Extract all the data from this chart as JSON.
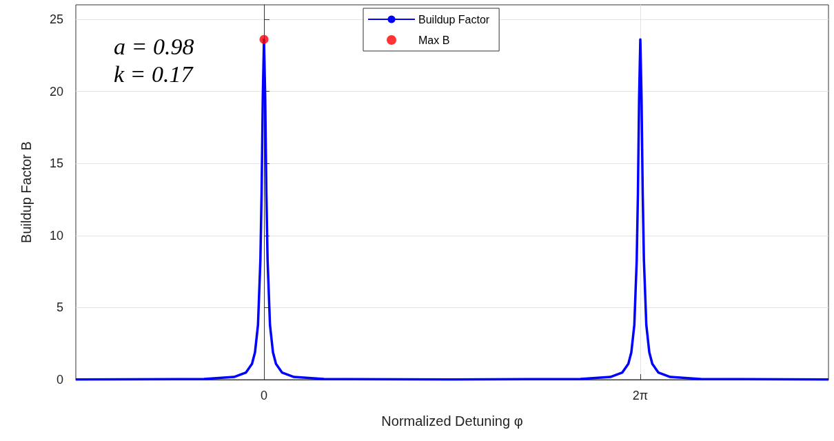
{
  "chart_data": {
    "type": "line",
    "xlabel": "Normalized Detuning φ",
    "ylabel": "Buildup Factor B",
    "annotations": [
      "a = 0.98",
      "k = 0.17"
    ],
    "xlim": [
      -3.1416,
      9.4248
    ],
    "xticks": [
      {
        "value": 0,
        "label": "0"
      },
      {
        "value": 6.2832,
        "label": "2π"
      }
    ],
    "ylim": [
      0,
      26
    ],
    "yticks": [
      0,
      5,
      10,
      15,
      20,
      25
    ],
    "grid": true,
    "legend": "top",
    "series": [
      {
        "name": "Buildup Factor",
        "marker": "none",
        "color": "#0000ff",
        "x": [
          -3.1416,
          -1,
          -0.5,
          -0.3,
          -0.2,
          -0.15,
          -0.1,
          -0.06,
          -0.04,
          -0.02,
          0,
          0.02,
          0.04,
          0.06,
          0.1,
          0.15,
          0.2,
          0.3,
          0.5,
          1,
          3.1416,
          5.2832,
          5.7832,
          5.9832,
          6.0832,
          6.1332,
          6.1832,
          6.2232,
          6.2432,
          6.2632,
          6.2832,
          6.3032,
          6.3232,
          6.3432,
          6.3832,
          6.4332,
          6.4832,
          6.5832,
          6.7832,
          7.2832,
          9.4248
        ],
        "values": [
          0.01,
          0.05,
          0.19,
          0.5,
          1.1,
          1.9,
          3.8,
          8.3,
          12.9,
          19.6,
          23.6,
          19.6,
          12.9,
          8.3,
          3.8,
          1.9,
          1.1,
          0.5,
          0.19,
          0.05,
          0.01,
          0.05,
          0.19,
          0.5,
          1.1,
          1.9,
          3.8,
          8.3,
          12.9,
          19.6,
          23.6,
          19.6,
          12.9,
          8.3,
          3.8,
          1.9,
          1.1,
          0.5,
          0.19,
          0.05,
          0.01
        ]
      },
      {
        "name": "Max B",
        "type": "scatter",
        "marker": "circle",
        "color": "#ff0000",
        "x": [
          0
        ],
        "values": [
          23.6
        ]
      }
    ]
  }
}
